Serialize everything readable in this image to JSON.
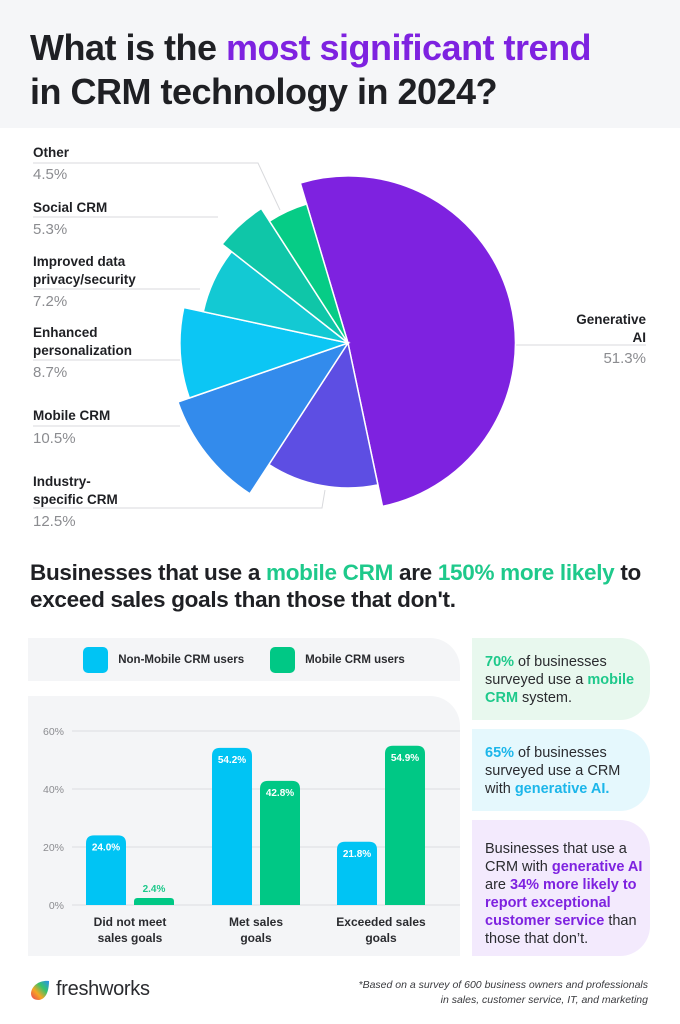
{
  "header": {
    "title_part1": "What is the ",
    "title_highlight": "most significant trend",
    "title_part2": "in CRM technology in 2024?"
  },
  "pie": {
    "labels": [
      {
        "name": "Other",
        "pct": "4.5%"
      },
      {
        "name": "Social CRM",
        "pct": "5.3%"
      },
      {
        "name_line1": "Improved data",
        "name_line2": "privacy/security",
        "pct": "7.2%"
      },
      {
        "name_line1": "Enhanced",
        "name_line2": "personalization",
        "pct": "8.7%"
      },
      {
        "name": "Mobile CRM",
        "pct": "10.5%"
      },
      {
        "name_line1": "Industry-",
        "name_line2": "specific CRM",
        "pct": "12.5%"
      },
      {
        "name_line1": "Generative",
        "name_line2": "AI",
        "pct": "51.3%"
      }
    ]
  },
  "subtitle": {
    "part1": "Businesses that use a ",
    "hl1": "mobile CRM",
    "part2": " are ",
    "hl2": "150% more likely",
    "part3": " to exceed sales goals than those that don't."
  },
  "legend": {
    "series1": "Non-Mobile CRM users",
    "series2": "Mobile CRM users"
  },
  "bar": {
    "yticks": [
      "60%",
      "40%",
      "20%",
      "0%"
    ],
    "groups": [
      {
        "line1": "Did not meet",
        "line2": "sales goals",
        "v1": "24.0%",
        "v2": "2.4%"
      },
      {
        "line1": "Met sales",
        "line2": "goals",
        "v1": "54.2%",
        "v2": "42.8%"
      },
      {
        "line1": "Exceeded sales",
        "line2": "goals",
        "v1": "21.8%",
        "v2": "54.9%"
      }
    ]
  },
  "cards": {
    "card1": {
      "hl1": "70%",
      "t1": " of businesses surveyed use a ",
      "hl2": "mobile CRM",
      "t2": " system."
    },
    "card2": {
      "hl1": "65%",
      "t1": " of businesses surveyed use a CRM with ",
      "hl2": "generative AI."
    },
    "card3": {
      "t1": "Businesses that use a CRM with ",
      "hl1": "generative AI",
      "t2": " are ",
      "hl2": "34% more likely to report exceptional customer service",
      "t3": " than those that don’t."
    }
  },
  "footer": {
    "brand": "freshworks",
    "note_line1": "*Based on a survey of 600 business owners and professionals",
    "note_line2": "in sales, customer service, IT, and marketing"
  },
  "colors": {
    "purple": "#7e22e0",
    "green": "#1ec98b",
    "blue": "#00c4f4",
    "bar_green": "#00c885"
  },
  "chart_data": [
    {
      "type": "pie",
      "title": "What is the most significant trend in CRM technology in 2024?",
      "categories": [
        "Generative AI",
        "Industry-specific CRM",
        "Mobile CRM",
        "Enhanced personalization",
        "Improved data privacy/security",
        "Social CRM",
        "Other"
      ],
      "values": [
        51.3,
        12.5,
        10.5,
        8.7,
        7.2,
        5.3,
        4.5
      ],
      "colors": [
        "#7e22e0",
        "#5d4ee3",
        "#338bec",
        "#0cc6f4",
        "#13c9d3",
        "#0fc6a8",
        "#06cc86"
      ]
    },
    {
      "type": "bar",
      "title": "Businesses that use a mobile CRM are 150% more likely to exceed sales goals than those that don't.",
      "categories": [
        "Did not meet sales goals",
        "Met sales goals",
        "Exceeded sales goals"
      ],
      "series": [
        {
          "name": "Non-Mobile CRM users",
          "values": [
            24.0,
            54.2,
            21.8
          ],
          "color": "#00c4f4"
        },
        {
          "name": "Mobile CRM users",
          "values": [
            2.4,
            42.8,
            54.9
          ],
          "color": "#00c885"
        }
      ],
      "xlabel": "",
      "ylabel": "",
      "yticks": [
        0,
        20,
        40,
        60
      ],
      "ylim": [
        0,
        60
      ],
      "grid": true,
      "legend_position": "top"
    }
  ]
}
